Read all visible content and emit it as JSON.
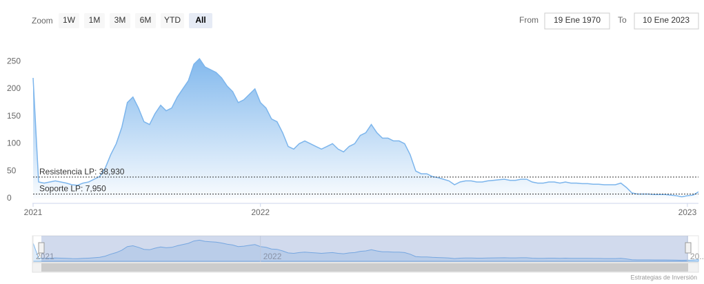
{
  "chart_data": {
    "type": "area",
    "range_selector": {
      "zoom_label": "Zoom",
      "buttons": [
        "1W",
        "1M",
        "3M",
        "6M",
        "YTD",
        "All"
      ],
      "selected": "All",
      "from_label": "From",
      "from": "19 Ene 1970",
      "to_label": "To",
      "to": "10 Ene 2023"
    },
    "categories": [
      "2021",
      null,
      null,
      null,
      null,
      null,
      null,
      null,
      null,
      null,
      null,
      null,
      null,
      null,
      null,
      null,
      null,
      null,
      null,
      null,
      null,
      null,
      null,
      null,
      null,
      null,
      null,
      null,
      null,
      null,
      null,
      null,
      null,
      null,
      null,
      null,
      null,
      null,
      null,
      null,
      null,
      "2022",
      null,
      null,
      null,
      null,
      null,
      null,
      null,
      null,
      null,
      null,
      null,
      null,
      null,
      null,
      null,
      null,
      null,
      null,
      null,
      null,
      null,
      null,
      null,
      null,
      null,
      null,
      null,
      null,
      null,
      null,
      null,
      null,
      null,
      null,
      null,
      null,
      null,
      null,
      null,
      null,
      null,
      null,
      null,
      null,
      null,
      null,
      null,
      null,
      null,
      null,
      null,
      null,
      null,
      null,
      null,
      null,
      null,
      null,
      null,
      null,
      null,
      null,
      null,
      null,
      null,
      null,
      null,
      null,
      null,
      null,
      null,
      null,
      null,
      null,
      null,
      null,
      "2023",
      null,
      null
    ],
    "values": [
      220,
      30,
      28,
      30,
      32,
      30,
      28,
      25,
      24,
      28,
      30,
      35,
      40,
      55,
      80,
      100,
      130,
      175,
      185,
      165,
      140,
      135,
      155,
      170,
      160,
      165,
      185,
      200,
      215,
      245,
      255,
      240,
      235,
      230,
      220,
      205,
      195,
      175,
      180,
      190,
      200,
      175,
      165,
      145,
      140,
      120,
      95,
      90,
      100,
      105,
      100,
      95,
      90,
      95,
      100,
      90,
      85,
      95,
      100,
      115,
      120,
      135,
      120,
      110,
      110,
      105,
      105,
      100,
      80,
      50,
      45,
      45,
      40,
      38,
      35,
      32,
      25,
      30,
      32,
      32,
      30,
      30,
      32,
      33,
      34,
      35,
      33,
      33,
      35,
      35,
      30,
      28,
      28,
      30,
      30,
      28,
      30,
      28,
      28,
      27,
      27,
      26,
      26,
      25,
      25,
      25,
      28,
      20,
      10,
      8,
      8,
      8,
      7,
      7,
      7,
      6,
      5,
      3,
      5,
      6,
      12
    ],
    "color": "#7cb5ec",
    "ylim": [
      -9,
      293
    ],
    "yticks": [
      0,
      50,
      100,
      150,
      200,
      250
    ],
    "plot_lines": [
      {
        "value": 38.93,
        "label": "Resistencia LP: 38,930"
      },
      {
        "value": 7.95,
        "label": "Soporte LP: 7,950"
      }
    ],
    "navigator": {
      "labels": [
        "2021",
        "2022",
        "20..."
      ]
    },
    "credit": "Estrategias de Inversión"
  }
}
